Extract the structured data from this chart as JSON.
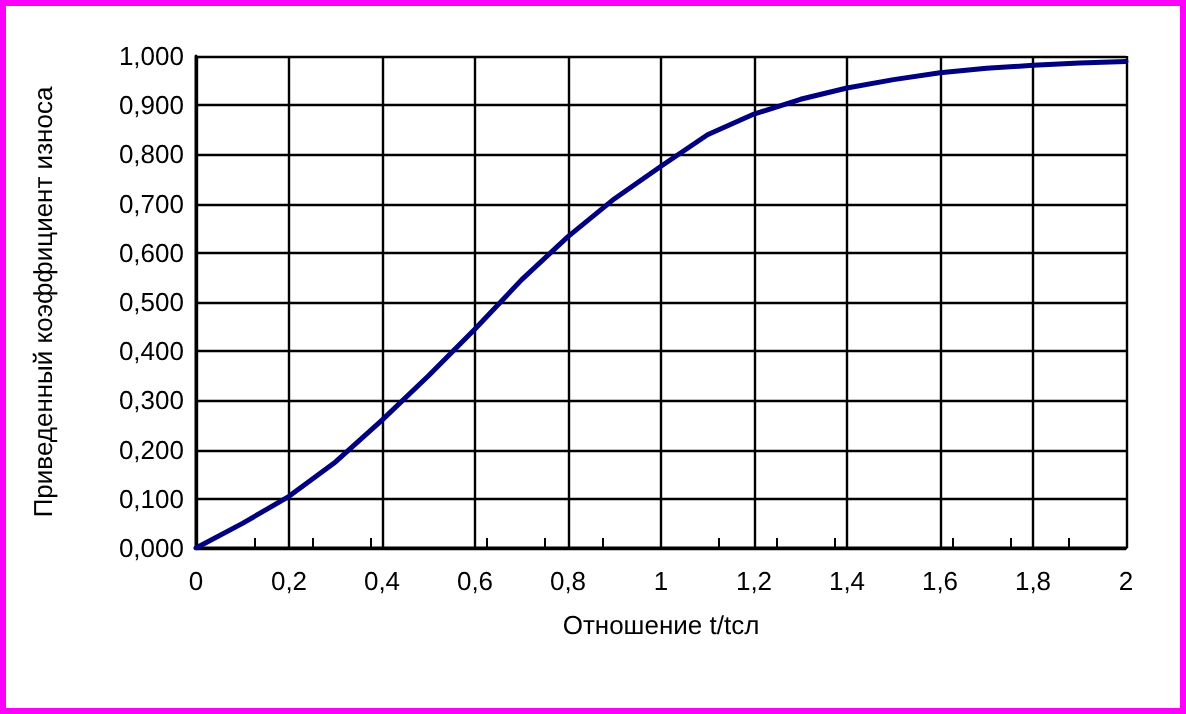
{
  "chart_data": {
    "type": "line",
    "xlabel": "Отношение t/tсл",
    "ylabel": "Приведенный коэффициент износа",
    "x": [
      0,
      0.1,
      0.2,
      0.3,
      0.4,
      0.5,
      0.6,
      0.7,
      0.8,
      0.9,
      1.0,
      1.1,
      1.2,
      1.3,
      1.4,
      1.5,
      1.6,
      1.7,
      1.8,
      1.9,
      2.0
    ],
    "series": [
      {
        "color": "#000080",
        "values": [
          0,
          0.05,
          0.105,
          0.175,
          0.26,
          0.35,
          0.445,
          0.545,
          0.633,
          0.71,
          0.776,
          0.84,
          0.882,
          0.912,
          0.935,
          0.952,
          0.966,
          0.975,
          0.981,
          0.986,
          0.989
        ]
      }
    ],
    "xlim": [
      0,
      2
    ],
    "xticks": [
      0,
      {
        "value": 0.2,
        "label": "0,2"
      },
      {
        "value": 0.4,
        "label": "0,4"
      },
      {
        "value": 0.6,
        "label": "0,6"
      },
      {
        "value": 0.8,
        "label": "0,8"
      },
      1,
      {
        "value": 1.2,
        "label": "1,2"
      },
      {
        "value": 1.4,
        "label": "1,4"
      },
      {
        "value": 1.6,
        "label": "1,6"
      },
      {
        "value": 1.8,
        "label": "1,8"
      },
      2
    ],
    "ylim": [
      0,
      1
    ],
    "yticks": [
      {
        "value": 0,
        "label": "0,000"
      },
      {
        "value": 0.1,
        "label": "0,100"
      },
      {
        "value": 0.2,
        "label": "0,200"
      },
      {
        "value": 0.3,
        "label": "0,300"
      },
      {
        "value": 0.4,
        "label": "0,400"
      },
      {
        "value": 0.5,
        "label": "0,500"
      },
      {
        "value": 0.6,
        "label": "0,600"
      },
      {
        "value": 0.7,
        "label": "0,700"
      },
      {
        "value": 0.8,
        "label": "0,800"
      },
      {
        "value": 0.9,
        "label": "0,900"
      },
      {
        "value": 1,
        "label": "1,000"
      }
    ],
    "grid": true,
    "marker": "none",
    "line_style": "solid"
  }
}
